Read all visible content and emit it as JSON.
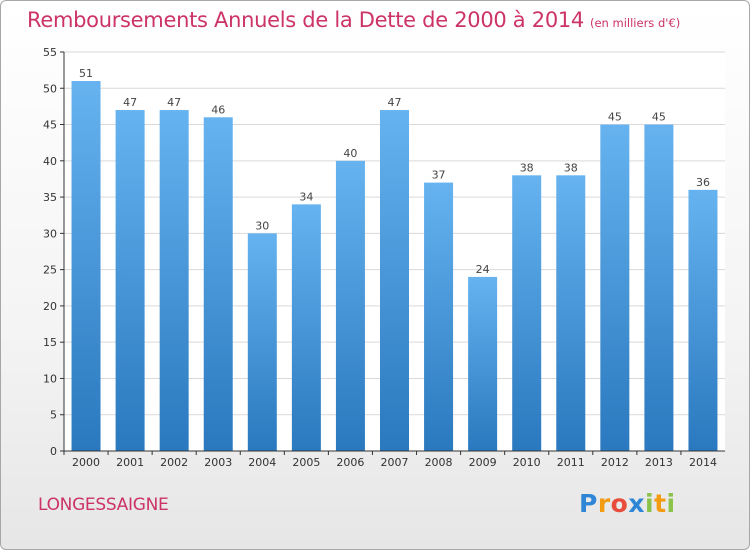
{
  "header": {
    "title": "Remboursements Annuels de la Dette de 2000 à 2014",
    "unit": "(en milliers d'€)"
  },
  "footer": {
    "commune": "LONGESSAIGNE",
    "logo_text": "Proxiti"
  },
  "colors": {
    "title": "#cc3366",
    "bar_top": "#66b3f0",
    "bar_bottom": "#2a78be",
    "axis": "#333333",
    "grid": "#d9d9d9"
  },
  "chart_data": {
    "type": "bar",
    "title": "Remboursements Annuels de la Dette de 2000 à 2014",
    "xlabel": "",
    "ylabel": "",
    "categories": [
      "2000",
      "2001",
      "2002",
      "2003",
      "2004",
      "2005",
      "2006",
      "2007",
      "2008",
      "2009",
      "2010",
      "2011",
      "2012",
      "2013",
      "2014"
    ],
    "values": [
      51,
      47,
      47,
      46,
      30,
      34,
      40,
      47,
      37,
      24,
      38,
      38,
      45,
      45,
      36
    ],
    "ylim": [
      0,
      55
    ],
    "yticks": [
      0,
      5,
      10,
      15,
      20,
      25,
      30,
      35,
      40,
      45,
      50,
      55
    ],
    "grid": true,
    "data_labels": true
  }
}
